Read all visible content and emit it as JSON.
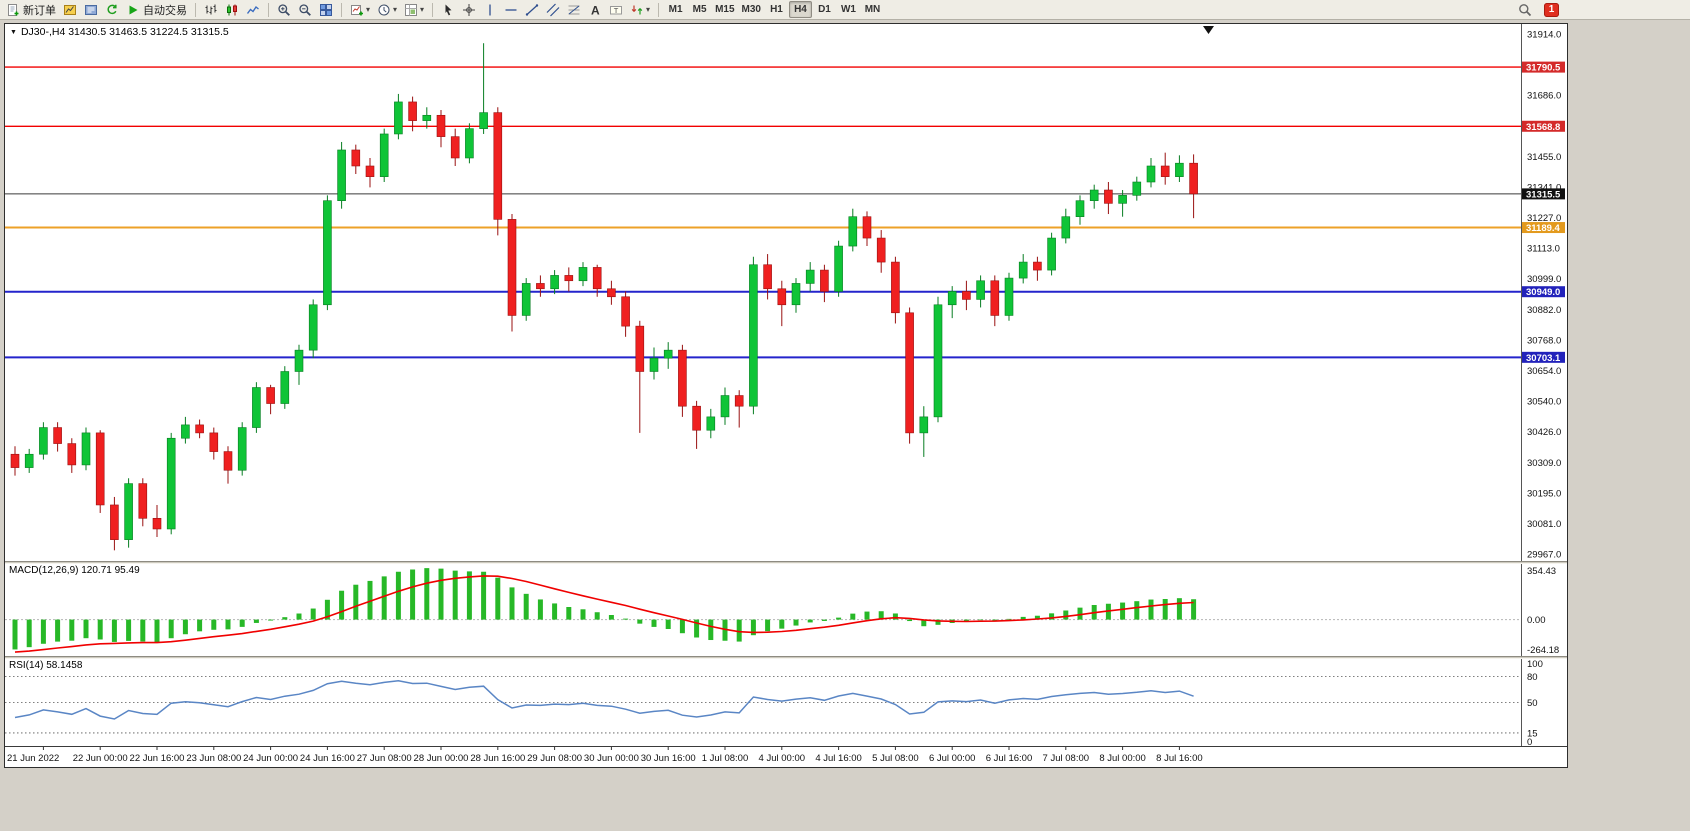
{
  "toolbar": {
    "groups": [
      {
        "items": [
          {
            "icon": "new-order",
            "label": "新订单",
            "name": "new-order-button"
          },
          {
            "icon": "charts",
            "name": "charts-button"
          },
          {
            "icon": "profiles",
            "name": "profiles-button"
          },
          {
            "icon": "refresh",
            "name": "refresh-button"
          },
          {
            "icon": "autotrade",
            "label": "自动交易",
            "name": "autotrade-button"
          }
        ]
      },
      {
        "items": [
          {
            "icon": "bars",
            "name": "bar-chart-button"
          },
          {
            "icon": "candles",
            "name": "candlestick-chart-button"
          },
          {
            "icon": "line-chart",
            "name": "line-chart-button"
          }
        ]
      },
      {
        "items": [
          {
            "icon": "zoom-in",
            "name": "zoom-in-button"
          },
          {
            "icon": "zoom-out",
            "name": "zoom-out-button"
          },
          {
            "icon": "tile",
            "name": "tile-windows-button"
          }
        ]
      },
      {
        "items": [
          {
            "icon": "new-chart",
            "caret": true,
            "name": "new-chart-button"
          },
          {
            "icon": "clock",
            "caret": true,
            "name": "periods-button"
          },
          {
            "icon": "template",
            "caret": true,
            "name": "templates-button"
          }
        ]
      },
      {
        "items": [
          {
            "icon": "cursor",
            "name": "cursor-button"
          },
          {
            "icon": "crosshair",
            "name": "crosshair-button"
          },
          {
            "icon": "vline",
            "name": "vertical-line-button"
          },
          {
            "icon": "hline",
            "name": "horizontal-line-button"
          },
          {
            "icon": "trendline",
            "name": "trendline-button"
          },
          {
            "icon": "channel",
            "name": "equidistant-channel-button"
          },
          {
            "icon": "fibo",
            "name": "fibonacci-button"
          },
          {
            "icon": "text-a",
            "name": "text-button"
          },
          {
            "icon": "label",
            "name": "text-label-button"
          },
          {
            "icon": "arrows",
            "caret": true,
            "name": "arrows-button"
          }
        ]
      }
    ],
    "timeframes": [
      "M1",
      "M5",
      "M15",
      "M30",
      "H1",
      "H4",
      "D1",
      "W1",
      "MN"
    ],
    "active_timeframe": "H4",
    "badge_count": "1"
  },
  "chart": {
    "collapse_arrow": "▼",
    "title": "DJ30-,H4  31430.5 31463.5 31224.5 31315.5"
  },
  "chart_data": {
    "type": "candlestick",
    "symbol": "DJ30-",
    "timeframe": "H4",
    "title": "DJ30-,H4 31430.5 31463.5 31224.5 31315.5",
    "last_bar_ohlc": {
      "open": 31430.5,
      "high": 31463.5,
      "low": 31224.5,
      "close": 31315.5
    },
    "colors": {
      "bull": "#0fc437",
      "bull_edge": "#077d22",
      "bear": "#ef2020",
      "bear_edge": "#991111",
      "macd": "#27b827",
      "macd_signal": "#f00000",
      "rsi": "#5a86c5"
    },
    "price_axis": {
      "min": 29940,
      "max": 31952,
      "ticks": [
        31914,
        31686,
        31455,
        31341,
        31227,
        31113,
        30999,
        30882,
        30768,
        30654,
        30540,
        30426,
        30309,
        30195,
        30081,
        29967
      ]
    },
    "levels": [
      {
        "price": 31790.5,
        "color": "#f20000",
        "width": 1.4,
        "tag_bg": "#d42a2a",
        "name": "resistance-line"
      },
      {
        "price": 31568.8,
        "color": "#f20000",
        "width": 1.4,
        "tag_bg": "#d42a2a",
        "name": "resistance-line"
      },
      {
        "price": 31315.5,
        "color": "#3a3a3a",
        "width": 1,
        "tag_bg": "#111111",
        "name": "bid-line"
      },
      {
        "price": 31189.4,
        "color": "#eda128",
        "width": 2,
        "tag_bg": "#e39a1e",
        "name": "pivot-line"
      },
      {
        "price": 30949.0,
        "color": "#2424cc",
        "width": 2,
        "tag_bg": "#2222bb",
        "name": "support-line"
      },
      {
        "price": 30703.1,
        "color": "#2424cc",
        "width": 2,
        "tag_bg": "#2222bb",
        "name": "support-line"
      }
    ],
    "candles": [
      [
        30340,
        30370,
        30260,
        30290
      ],
      [
        30290,
        30360,
        30270,
        30340
      ],
      [
        30340,
        30460,
        30320,
        30440
      ],
      [
        30440,
        30460,
        30350,
        30380
      ],
      [
        30380,
        30400,
        30270,
        30300
      ],
      [
        30300,
        30440,
        30280,
        30420
      ],
      [
        30420,
        30430,
        30120,
        30150
      ],
      [
        30150,
        30180,
        29980,
        30020
      ],
      [
        30020,
        30250,
        29990,
        30230
      ],
      [
        30230,
        30250,
        30070,
        30100
      ],
      [
        30100,
        30150,
        30030,
        30060
      ],
      [
        30060,
        30420,
        30040,
        30400
      ],
      [
        30400,
        30480,
        30380,
        30450
      ],
      [
        30450,
        30470,
        30400,
        30420
      ],
      [
        30420,
        30440,
        30320,
        30350
      ],
      [
        30350,
        30370,
        30230,
        30280
      ],
      [
        30280,
        30460,
        30260,
        30440
      ],
      [
        30440,
        30610,
        30420,
        30590
      ],
      [
        30590,
        30600,
        30490,
        30530
      ],
      [
        30530,
        30670,
        30510,
        30650
      ],
      [
        30650,
        30750,
        30600,
        30730
      ],
      [
        30730,
        30920,
        30700,
        30900
      ],
      [
        30900,
        31310,
        30880,
        31290
      ],
      [
        31290,
        31510,
        31260,
        31480
      ],
      [
        31480,
        31500,
        31390,
        31420
      ],
      [
        31420,
        31450,
        31340,
        31380
      ],
      [
        31380,
        31560,
        31360,
        31540
      ],
      [
        31540,
        31690,
        31520,
        31660
      ],
      [
        31660,
        31680,
        31550,
        31590
      ],
      [
        31590,
        31640,
        31560,
        31610
      ],
      [
        31610,
        31630,
        31490,
        31530
      ],
      [
        31530,
        31560,
        31420,
        31450
      ],
      [
        31450,
        31580,
        31430,
        31560
      ],
      [
        31560,
        31880,
        31540,
        31620
      ],
      [
        31620,
        31640,
        31160,
        31220
      ],
      [
        31220,
        31240,
        30800,
        30860
      ],
      [
        30860,
        31000,
        30840,
        30980
      ],
      [
        30980,
        31010,
        30930,
        30960
      ],
      [
        30960,
        31030,
        30940,
        31010
      ],
      [
        31010,
        31040,
        30950,
        30990
      ],
      [
        30990,
        31060,
        30970,
        31040
      ],
      [
        31040,
        31050,
        30930,
        30960
      ],
      [
        30960,
        30990,
        30900,
        30930
      ],
      [
        30930,
        30950,
        30780,
        30820
      ],
      [
        30820,
        30840,
        30420,
        30650
      ],
      [
        30650,
        30740,
        30620,
        30700
      ],
      [
        30700,
        30760,
        30660,
        30730
      ],
      [
        30730,
        30750,
        30480,
        30520
      ],
      [
        30520,
        30540,
        30360,
        30430
      ],
      [
        30430,
        30510,
        30400,
        30480
      ],
      [
        30480,
        30590,
        30450,
        30560
      ],
      [
        30560,
        30580,
        30440,
        30520
      ],
      [
        30520,
        31080,
        30490,
        31050
      ],
      [
        31050,
        31090,
        30920,
        30960
      ],
      [
        30960,
        30990,
        30820,
        30900
      ],
      [
        30900,
        31000,
        30870,
        30980
      ],
      [
        30980,
        31060,
        30950,
        31030
      ],
      [
        31030,
        31050,
        30910,
        30950
      ],
      [
        30950,
        31140,
        30930,
        31120
      ],
      [
        31120,
        31260,
        31100,
        31230
      ],
      [
        31230,
        31250,
        31120,
        31150
      ],
      [
        31150,
        31180,
        31020,
        31060
      ],
      [
        31060,
        31080,
        30830,
        30870
      ],
      [
        30870,
        30890,
        30380,
        30420
      ],
      [
        30420,
        30520,
        30330,
        30480
      ],
      [
        30480,
        30930,
        30460,
        30900
      ],
      [
        30900,
        30970,
        30850,
        30950
      ],
      [
        30950,
        30990,
        30880,
        30920
      ],
      [
        30920,
        31010,
        30890,
        30990
      ],
      [
        30990,
        31010,
        30820,
        30860
      ],
      [
        30860,
        31020,
        30840,
        31000
      ],
      [
        31000,
        31090,
        30980,
        31060
      ],
      [
        31060,
        31080,
        30990,
        31030
      ],
      [
        31030,
        31170,
        31010,
        31150
      ],
      [
        31150,
        31260,
        31130,
        31230
      ],
      [
        31230,
        31310,
        31200,
        31290
      ],
      [
        31290,
        31350,
        31260,
        31330
      ],
      [
        31330,
        31360,
        31240,
        31280
      ],
      [
        31280,
        31330,
        31230,
        31310
      ],
      [
        31310,
        31380,
        31290,
        31360
      ],
      [
        31360,
        31450,
        31340,
        31420
      ],
      [
        31420,
        31470,
        31350,
        31380
      ],
      [
        31380,
        31460,
        31360,
        31430.5
      ],
      [
        31430.5,
        31463.5,
        31224.5,
        31315.5
      ]
    ],
    "pre_closes": [
      31150,
      31100,
      31180,
      31050,
      30950,
      30870,
      30920,
      30780,
      30650,
      30700,
      30560,
      30430,
      30480,
      30350,
      30280,
      30340,
      30220,
      30150,
      30230,
      30180,
      30280,
      30220,
      30300,
      30340
    ],
    "time_labels": [
      {
        "text": "21 Jun 2022",
        "bar": 2
      },
      {
        "text": "22 Jun 00:00",
        "bar": 6
      },
      {
        "text": "22 Jun 16:00",
        "bar": 10
      },
      {
        "text": "23 Jun 08:00",
        "bar": 14
      },
      {
        "text": "24 Jun 00:00",
        "bar": 18
      },
      {
        "text": "24 Jun 16:00",
        "bar": 22
      },
      {
        "text": "27 Jun 08:00",
        "bar": 26
      },
      {
        "text": "28 Jun 00:00",
        "bar": 30
      },
      {
        "text": "28 Jun 16:00",
        "bar": 34
      },
      {
        "text": "29 Jun 08:00",
        "bar": 38
      },
      {
        "text": "30 Jun 00:00",
        "bar": 42
      },
      {
        "text": "30 Jun 16:00",
        "bar": 46
      },
      {
        "text": "1 Jul 08:00",
        "bar": 50
      },
      {
        "text": "4 Jul 00:00",
        "bar": 54
      },
      {
        "text": "4 Jul 16:00",
        "bar": 58
      },
      {
        "text": "5 Jul 08:00",
        "bar": 62
      },
      {
        "text": "6 Jul 00:00",
        "bar": 66
      },
      {
        "text": "6 Jul 16:00",
        "bar": 70
      },
      {
        "text": "7 Jul 08:00",
        "bar": 74
      },
      {
        "text": "8 Jul 00:00",
        "bar": 78
      },
      {
        "text": "8 Jul 16:00",
        "bar": 82
      }
    ],
    "indicators": [
      {
        "name": "MACD",
        "label": "MACD(12,26,9) 120.71 95.49",
        "fast": 12,
        "slow": 26,
        "signal": 9,
        "current_values": [
          "120.71",
          "95.49"
        ],
        "axis_labels": [
          "354.43",
          "0.00",
          "-264.18"
        ]
      },
      {
        "name": "RSI",
        "label": "RSI(14) 58.1458",
        "period": 14,
        "current_value": "58.1458",
        "axis_labels": [
          "100",
          "80",
          "50",
          "15",
          "0"
        ],
        "levels": [
          80,
          50,
          15
        ]
      }
    ]
  }
}
